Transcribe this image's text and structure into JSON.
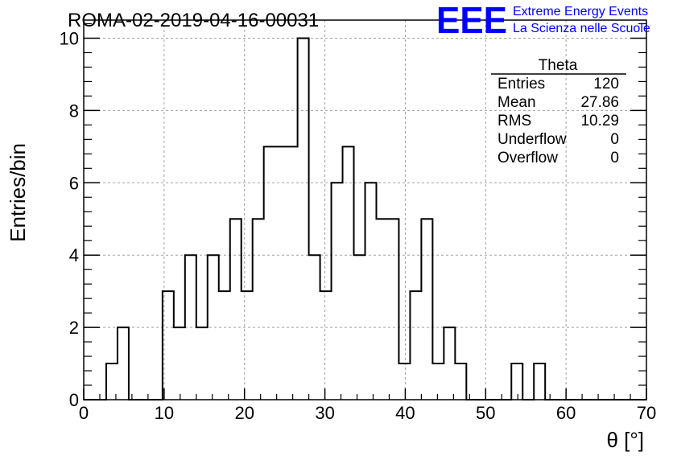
{
  "chart_data": {
    "type": "bar",
    "title": "ROMA-02-2019-04-16-00031",
    "xlabel": "θ [°]",
    "ylabel": "Entries/bin",
    "xlim": [
      0,
      70
    ],
    "ylim": [
      0,
      10.5
    ],
    "x_ticks": [
      "0",
      "10",
      "20",
      "30",
      "40",
      "50",
      "60",
      "70"
    ],
    "y_ticks": [
      "0",
      "2",
      "4",
      "6",
      "8",
      "10"
    ],
    "grid": true,
    "bin_start": 0,
    "bin_width": 1.4,
    "values": [
      0,
      0,
      1,
      2,
      0,
      0,
      0,
      3,
      2,
      4,
      2,
      4,
      3,
      5,
      3,
      5,
      7,
      7,
      7,
      10,
      4,
      3,
      6,
      7,
      4,
      6,
      5,
      5,
      1,
      3,
      5,
      1,
      2,
      1,
      0,
      0,
      0,
      0,
      1,
      0,
      1,
      0,
      0,
      0,
      0,
      0,
      0,
      0,
      0,
      0
    ],
    "stats": {
      "name": "Theta",
      "rows": [
        {
          "label": "Entries",
          "value": "120"
        },
        {
          "label": "Mean",
          "value": "27.86"
        },
        {
          "label": "RMS",
          "value": "10.29"
        },
        {
          "label": "Underflow",
          "value": "0"
        },
        {
          "label": "Overflow",
          "value": "0"
        }
      ]
    },
    "logo": {
      "mark": "EEE",
      "line1": "Extreme Energy Events",
      "line2": "La Scienza nelle Scuole",
      "color": "#0000ff"
    }
  }
}
